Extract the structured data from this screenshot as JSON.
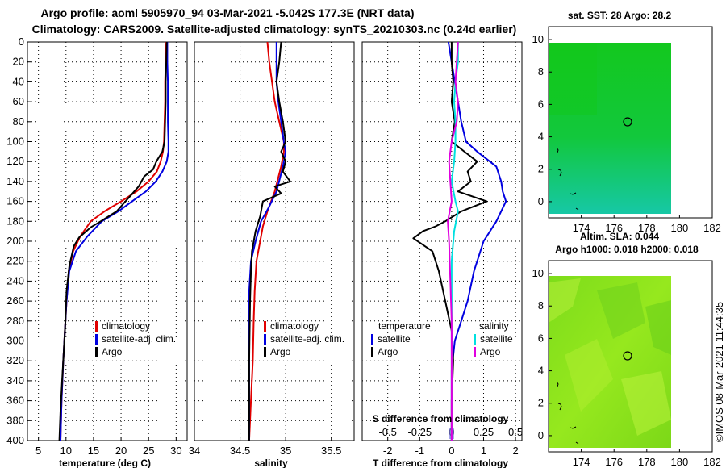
{
  "header": {
    "title_line1": "Argo profile: aoml 5905970_94 03-Mar-2021 -5.042S 177.3E (NRT data)",
    "title_line2": "Climatology: CARS2009. Satellite-adjusted climatology: synTS_20210303.nc (0.24d earlier)"
  },
  "watermark": "©IMOS 08-Mar-2021 11:44:35",
  "colors": {
    "climatology": "#e00000",
    "satellite": "#0000e0",
    "argo": "#000000",
    "sat_salinity": "#00e0e0",
    "sal_clim": "#e000e0"
  },
  "chart_data": [
    {
      "type": "line",
      "id": "temperature",
      "xlabel": "temperature (deg C)",
      "ylabel": "",
      "xlim": [
        3,
        32
      ],
      "ylim": [
        0,
        400
      ],
      "y_inverted": true,
      "xticks": [
        5,
        10,
        15,
        20,
        25,
        30
      ],
      "xtick_labels": [
        "5",
        "10",
        "15",
        "20",
        "25",
        "30"
      ],
      "yticks": [
        0,
        20,
        40,
        60,
        80,
        100,
        120,
        140,
        160,
        180,
        200,
        220,
        240,
        260,
        280,
        300,
        320,
        340,
        360,
        380,
        400
      ],
      "legend": [
        "climatology",
        "satellite-adj. clim.",
        "Argo"
      ],
      "series": [
        {
          "name": "climatology",
          "color": "#e00000",
          "x": [
            28.2,
            28.1,
            28.0,
            28.0,
            27.9,
            27.8,
            27.6,
            27.2,
            26.5,
            25.0,
            22.8,
            20.0,
            17.0,
            14.5,
            12.6,
            11.3,
            10.5,
            10.1,
            9.8,
            9.5,
            9.2,
            9.0
          ],
          "y": [
            0,
            20,
            40,
            60,
            80,
            100,
            110,
            120,
            130,
            140,
            150,
            160,
            170,
            180,
            195,
            210,
            230,
            260,
            290,
            320,
            360,
            400
          ]
        },
        {
          "name": "satellite-adj. clim.",
          "color": "#0000e0",
          "x": [
            28.4,
            28.4,
            28.5,
            28.5,
            28.5,
            28.6,
            28.6,
            28.3,
            27.5,
            26.3,
            24.5,
            22.0,
            19.5,
            16.5,
            13.9,
            11.8,
            10.6,
            10.1,
            9.8,
            9.5,
            9.2,
            9.0
          ],
          "y": [
            0,
            20,
            40,
            60,
            80,
            100,
            110,
            120,
            130,
            140,
            150,
            160,
            170,
            180,
            195,
            210,
            230,
            260,
            290,
            320,
            360,
            400
          ]
        },
        {
          "name": "Argo",
          "color": "#000000",
          "x": [
            28.3,
            28.2,
            28.1,
            28.1,
            28.0,
            27.9,
            27.5,
            26.4,
            25.8,
            24.2,
            23.2,
            21.6,
            19.2,
            16.3,
            14.5,
            12.4,
            11.4,
            10.6,
            10.1,
            9.9,
            9.6,
            9.3,
            9.0,
            8.8
          ],
          "y": [
            0,
            20,
            40,
            60,
            80,
            100,
            110,
            120,
            128,
            135,
            145,
            155,
            170,
            180,
            186,
            196,
            205,
            225,
            250,
            280,
            310,
            340,
            370,
            400
          ]
        }
      ]
    },
    {
      "type": "line",
      "id": "salinity",
      "xlabel": "salinity",
      "ylabel": "",
      "xlim": [
        34,
        35.75
      ],
      "ylim": [
        0,
        400
      ],
      "y_inverted": true,
      "xticks": [
        34,
        34.5,
        35,
        35.5
      ],
      "xtick_labels": [
        "34",
        "34.5",
        "35",
        "35.5"
      ],
      "legend": [
        "climatology",
        "satellite-adj. clim.",
        "Argo"
      ],
      "series": [
        {
          "name": "climatology",
          "color": "#e00000",
          "x": [
            34.8,
            34.82,
            34.85,
            34.88,
            34.93,
            34.98,
            34.98,
            34.95,
            34.88,
            34.8,
            34.75,
            34.72,
            34.68,
            34.66,
            34.65,
            34.64,
            34.62,
            34.6
          ],
          "y": [
            0,
            20,
            40,
            60,
            80,
            100,
            110,
            125,
            150,
            170,
            185,
            200,
            220,
            250,
            280,
            320,
            360,
            400
          ]
        },
        {
          "name": "satellite-adj. clim.",
          "color": "#0000e0",
          "x": [
            34.9,
            34.9,
            34.9,
            34.92,
            34.95,
            34.98,
            35.0,
            34.97,
            34.9,
            34.82,
            34.73,
            34.67,
            34.62,
            34.6,
            34.6,
            34.6,
            34.6,
            34.6
          ],
          "y": [
            0,
            20,
            40,
            60,
            80,
            100,
            110,
            125,
            150,
            165,
            180,
            200,
            220,
            250,
            280,
            320,
            360,
            400
          ]
        },
        {
          "name": "Argo",
          "color": "#000000",
          "x": [
            34.95,
            34.93,
            34.9,
            34.93,
            34.97,
            35.0,
            34.95,
            35.0,
            34.97,
            35.05,
            34.88,
            34.95,
            34.75,
            34.72,
            34.67,
            34.63,
            34.62,
            34.61,
            34.6,
            34.6
          ],
          "y": [
            0,
            20,
            40,
            60,
            80,
            100,
            110,
            120,
            130,
            140,
            145,
            152,
            160,
            175,
            190,
            210,
            230,
            260,
            320,
            400
          ]
        }
      ]
    },
    {
      "type": "line",
      "id": "difference",
      "xlabel": "T difference from climatology",
      "x2label": "S difference from climatology",
      "xlim": [
        -2.8,
        2.2
      ],
      "x2lim": [
        -0.7,
        0.55
      ],
      "ylim": [
        0,
        400
      ],
      "y_inverted": true,
      "xticks": [
        -2,
        -1,
        0,
        1,
        2
      ],
      "xtick_labels": [
        "-2",
        "-1",
        "0",
        "1",
        "2"
      ],
      "x2ticks": [
        -0.5,
        -0.25,
        0,
        0.25,
        0.5
      ],
      "x2tick_labels": [
        "-0.5",
        "-0.25",
        "0",
        "0.25",
        "0.5"
      ],
      "legend_temperature_title": "temperature",
      "legend_salinity_title": "salinity",
      "legend": [
        "satellite",
        "Argo",
        "satellite",
        "Argo"
      ],
      "series": [
        {
          "name": "temperature satellite",
          "color": "#0000e0",
          "axis": "T",
          "x": [
            -0.1,
            0.0,
            0.1,
            0.2,
            0.3,
            0.45,
            0.8,
            1.4,
            1.55,
            1.6,
            1.7,
            1.4,
            1.0,
            0.7,
            0.5,
            0.3,
            0.1,
            0.0,
            0.0,
            0.0
          ],
          "y": [
            0,
            20,
            40,
            60,
            80,
            100,
            110,
            125,
            140,
            150,
            160,
            180,
            200,
            230,
            260,
            280,
            300,
            330,
            360,
            400
          ]
        },
        {
          "name": "temperature Argo",
          "color": "#000000",
          "axis": "T",
          "x": [
            0.0,
            0.0,
            0.05,
            0.0,
            0.1,
            0.0,
            0.4,
            0.8,
            0.5,
            0.6,
            0.2,
            1.1,
            0.3,
            -0.2,
            -0.5,
            -0.9,
            -1.2,
            -0.6,
            -0.4,
            -0.2,
            0.0,
            0.05,
            0.0,
            0.0
          ],
          "y": [
            0,
            20,
            40,
            60,
            80,
            100,
            110,
            120,
            130,
            140,
            150,
            160,
            170,
            180,
            185,
            190,
            197,
            210,
            230,
            260,
            290,
            320,
            360,
            400
          ]
        },
        {
          "name": "salinity satellite",
          "color": "#00e0e0",
          "axis": "S",
          "x": [
            0.05,
            0.05,
            0.03,
            0.02,
            0.03,
            0.03,
            0.02,
            0.0,
            0.03,
            0.05,
            0.02,
            0.0,
            0.0,
            0.0,
            0.0,
            0.0,
            0.0
          ],
          "y": [
            0,
            20,
            40,
            60,
            80,
            100,
            120,
            140,
            160,
            170,
            190,
            220,
            260,
            300,
            330,
            360,
            400
          ]
        },
        {
          "name": "salinity Argo",
          "color": "#e000e0",
          "axis": "S",
          "x": [
            0.05,
            0.04,
            0.03,
            0.05,
            0.04,
            0.0,
            -0.02,
            -0.01,
            0.0,
            -0.03,
            -0.02,
            -0.01,
            0.0,
            0.0,
            0.0
          ],
          "y": [
            0,
            20,
            40,
            60,
            80,
            100,
            120,
            140,
            160,
            180,
            200,
            240,
            280,
            340,
            400
          ]
        }
      ]
    },
    {
      "type": "heatmap",
      "id": "sst_map",
      "title": "sat. SST: 28 Argo: 28.2",
      "xlim": [
        172,
        182
      ],
      "ylim": [
        -1,
        10.8
      ],
      "xticks": [
        174,
        176,
        178,
        180,
        182
      ],
      "xtick_labels": [
        "174",
        "176",
        "178",
        "180",
        "182"
      ],
      "yticks": [
        0,
        2,
        4,
        6,
        8,
        10
      ],
      "ytick_labels": [
        "0",
        "2",
        "4",
        "6",
        "8",
        "10"
      ],
      "data_extent": [
        172,
        180,
        -0.8,
        10
      ],
      "marker": {
        "x": 177.3,
        "y": 5.0
      }
    },
    {
      "type": "heatmap",
      "id": "sla_map",
      "title": "Altim. SLA: 0.044",
      "subtitle": "Argo h1000: 0.018 h2000: 0.018",
      "xlim": [
        172,
        182
      ],
      "ylim": [
        -1,
        10.8
      ],
      "xticks": [
        174,
        176,
        178,
        180,
        182
      ],
      "xtick_labels": [
        "174",
        "176",
        "178",
        "180",
        "182"
      ],
      "yticks": [
        0,
        2,
        4,
        6,
        8,
        10
      ],
      "ytick_labels": [
        "0",
        "2",
        "4",
        "6",
        "8",
        "10"
      ],
      "data_extent": [
        172,
        180,
        -0.8,
        10
      ],
      "marker": {
        "x": 177.3,
        "y": 5.0
      }
    }
  ]
}
